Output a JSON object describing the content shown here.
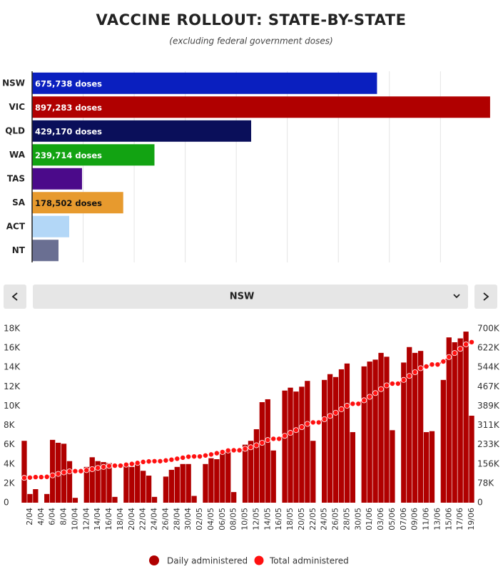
{
  "chart_data": [
    {
      "type": "hbar",
      "title": "VACCINE ROLLOUT: STATE-BY-STATE",
      "subtitle": "(excluding federal government doses)",
      "categories": [
        "NSW",
        "VIC",
        "QLD",
        "WA",
        "TAS",
        "SA",
        "ACT",
        "NT"
      ],
      "values": [
        675738,
        897283,
        429170,
        239714,
        97800,
        178502,
        72700,
        51700
      ],
      "value_labels": [
        "675,738 doses",
        "897,283 doses",
        "429,170 doses",
        "239,714 doses",
        null,
        "178,502 doses",
        null,
        null
      ],
      "colors": [
        "#0a1fbf",
        "#b00000",
        "#0a0f5a",
        "#12a312",
        "#4b0a8a",
        "#e79a2e",
        "#b3d7f7",
        "#6a6f92"
      ],
      "xlim": [
        0,
        910000
      ],
      "xticks": [
        100000,
        200000,
        300000,
        400000,
        500000,
        600000,
        700000,
        800000
      ],
      "grid": true
    },
    {
      "type": "bar_line",
      "categories": [
        null,
        "2/04",
        null,
        "4/04",
        null,
        "6/04",
        null,
        "8/04",
        null,
        "10/04",
        null,
        "12/04",
        null,
        "14/04",
        null,
        "16/04",
        null,
        "18/04",
        null,
        "20/04",
        null,
        "22/04",
        null,
        "24/04",
        null,
        "26/04",
        null,
        "28/04",
        null,
        "30/04",
        null,
        "02/05",
        null,
        "04/05",
        null,
        "06/05",
        null,
        "08/05",
        null,
        "10/05",
        null,
        "12/05",
        null,
        "14/05",
        null,
        "16/05",
        null,
        "18/05",
        null,
        "20/05",
        null,
        "22/05",
        null,
        "24/05",
        null,
        "26/05",
        null,
        "28/05",
        null,
        "30/05",
        null,
        "01/06",
        null,
        "03/06",
        null,
        "05/06",
        null,
        "07/06",
        null,
        "09/06",
        null,
        "11/06",
        null,
        "13/06",
        null,
        "15/06",
        null,
        "17/06",
        null,
        "19/06"
      ],
      "ylim": [
        0,
        18000
      ],
      "yticks": [
        0,
        {
          "value": 2000,
          "label": "2K"
        },
        {
          "value": 4000,
          "label": "4K"
        },
        {
          "value": 6000,
          "label": "6K"
        },
        {
          "value": 8000,
          "label": "8K"
        },
        {
          "value": 10000,
          "label": "10K"
        },
        {
          "value": 12000,
          "label": "12K"
        },
        {
          "value": 14000,
          "label": "14K"
        },
        {
          "value": 16000,
          "label": "16K"
        },
        {
          "value": 18000,
          "label": "18K"
        }
      ],
      "y2lim": [
        0,
        700000
      ],
      "y2ticks": [
        0,
        {
          "value": 77778,
          "label": "78K"
        },
        {
          "value": 155556,
          "label": "156K"
        },
        {
          "value": 233333,
          "label": "233K"
        },
        {
          "value": 311111,
          "label": "311K"
        },
        {
          "value": 388889,
          "label": "389K"
        },
        {
          "value": 466667,
          "label": "467K"
        },
        {
          "value": 544444,
          "label": "544K"
        },
        {
          "value": 622222,
          "label": "622K"
        },
        {
          "value": 700000,
          "label": "700K"
        }
      ],
      "series": [
        {
          "name": "Daily administered",
          "type": "bar",
          "color": "#b00000",
          "values": [
            6400,
            900,
            1400,
            0,
            900,
            6500,
            6200,
            6100,
            4300,
            500,
            0,
            3700,
            4700,
            4300,
            4200,
            4100,
            600,
            0,
            3900,
            3700,
            4100,
            3300,
            2800,
            600,
            0,
            2700,
            3400,
            3700,
            4000,
            4000,
            700,
            0,
            4000,
            4600,
            4500,
            5400,
            5300,
            1100,
            0,
            6000,
            6400,
            7600,
            10400,
            10700,
            5400,
            0,
            11600,
            11900,
            11500,
            12000,
            12600,
            6400,
            0,
            12700,
            13300,
            13000,
            13800,
            14400,
            7300,
            0,
            14100,
            14600,
            14800,
            15500,
            15100,
            7500,
            0,
            14500,
            16100,
            15500,
            15700,
            7300,
            7400,
            0,
            12700,
            17100,
            16600,
            17000,
            17700,
            9000
          ]
        },
        {
          "name": "Total administered",
          "type": "line",
          "axis": "y2",
          "color": "#ff1010",
          "values": [
            100000,
            101000,
            103000,
            103000,
            104000,
            110000,
            116000,
            122000,
            126000,
            127000,
            127000,
            131000,
            135000,
            140000,
            144000,
            148000,
            149000,
            149000,
            153000,
            156000,
            160000,
            164000,
            166000,
            167000,
            167000,
            170000,
            173000,
            177000,
            181000,
            185000,
            186000,
            186000,
            190000,
            194000,
            199000,
            204000,
            210000,
            211000,
            211000,
            217000,
            223000,
            231000,
            241000,
            252000,
            257000,
            257000,
            269000,
            281000,
            292000,
            304000,
            317000,
            323000,
            323000,
            336000,
            349000,
            362000,
            376000,
            390000,
            398000,
            398000,
            412000,
            426000,
            441000,
            457000,
            472000,
            479000,
            479000,
            494000,
            510000,
            525000,
            541000,
            548000,
            556000,
            556000,
            568000,
            586000,
            602000,
            619000,
            637000,
            646000
          ]
        }
      ]
    }
  ],
  "controls": {
    "selected": "NSW"
  }
}
